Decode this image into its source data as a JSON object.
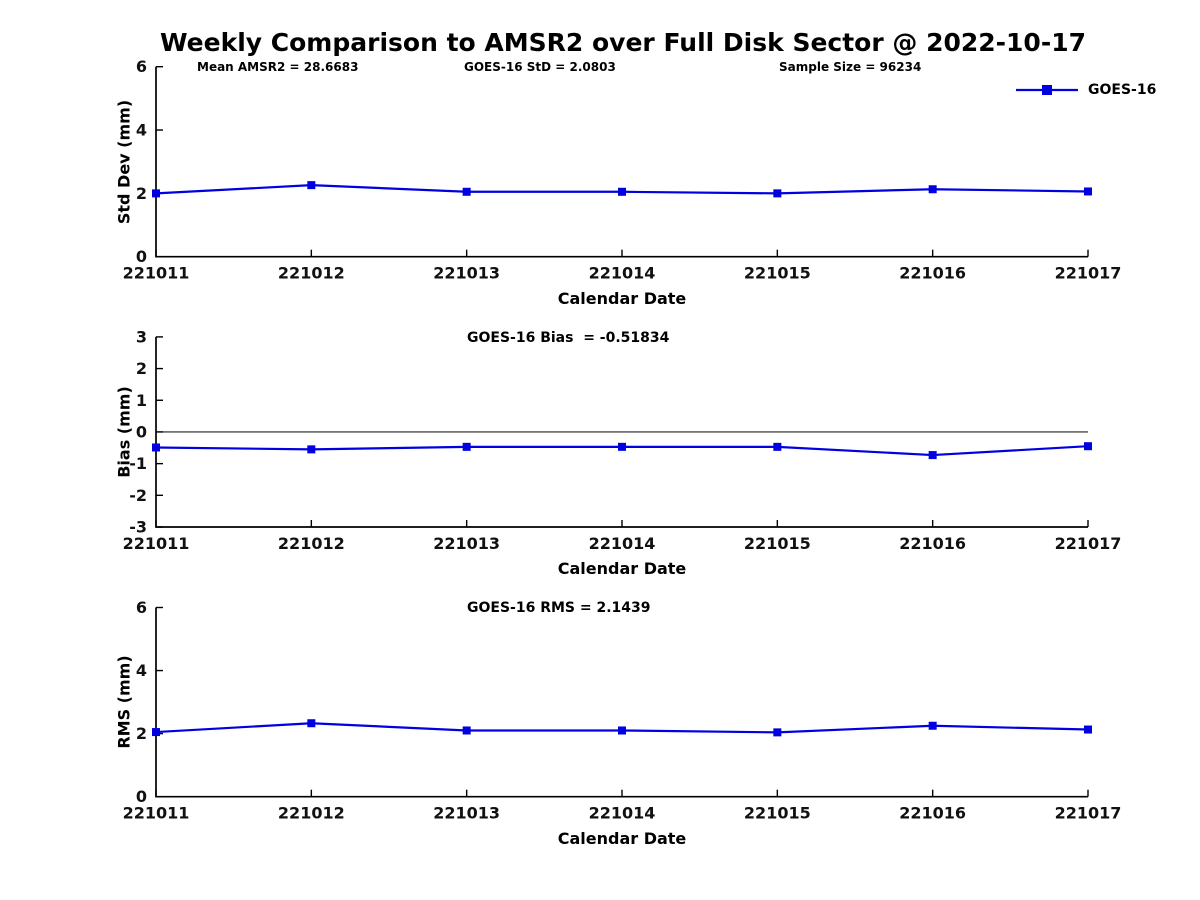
{
  "figure": {
    "title": "Weekly Comparison to AMSR2 over Full Disk Sector @ 2022-10-17",
    "background": "#ffffff"
  },
  "header_stats": {
    "mean_amsr2": "Mean AMSR2 = 28.6683",
    "goes16_std": "GOES-16 StD = 2.0803",
    "sample_size": "Sample Size = 96234"
  },
  "legend": {
    "label": "GOES-16",
    "position": "top-right",
    "marker": "square"
  },
  "colors": {
    "series": "#0000e0",
    "axis": "#000000",
    "text": "#000000",
    "zero_line": "#222222"
  },
  "chart_data": [
    {
      "type": "line",
      "title": "",
      "xlabel": "Calendar Date",
      "ylabel": "Std Dev (mm)",
      "categories": [
        "221011",
        "221012",
        "221013",
        "221014",
        "221015",
        "221016",
        "221017"
      ],
      "series": [
        {
          "name": "GOES-16",
          "values": [
            2.0,
            2.26,
            2.05,
            2.05,
            2.0,
            2.13,
            2.06
          ]
        }
      ],
      "ylim": [
        0,
        6
      ],
      "yticks": [
        0,
        2,
        4,
        6
      ],
      "marker": "square",
      "grid": false,
      "zero_line": false
    },
    {
      "type": "line",
      "title": "GOES-16 Bias  = -0.51834",
      "xlabel": "Calendar Date",
      "ylabel": "Bias (mm)",
      "categories": [
        "221011",
        "221012",
        "221013",
        "221014",
        "221015",
        "221016",
        "221017"
      ],
      "series": [
        {
          "name": "GOES-16",
          "values": [
            -0.49,
            -0.55,
            -0.47,
            -0.47,
            -0.47,
            -0.73,
            -0.45
          ]
        }
      ],
      "ylim": [
        -3,
        3
      ],
      "yticks": [
        -3,
        -2,
        -1,
        0,
        1,
        2,
        3
      ],
      "marker": "square",
      "grid": false,
      "zero_line": true
    },
    {
      "type": "line",
      "title": "GOES-16 RMS = 2.1439",
      "xlabel": "Calendar Date",
      "ylabel": "RMS (mm)",
      "categories": [
        "221011",
        "221012",
        "221013",
        "221014",
        "221015",
        "221016",
        "221017"
      ],
      "series": [
        {
          "name": "GOES-16",
          "values": [
            2.05,
            2.33,
            2.1,
            2.1,
            2.04,
            2.25,
            2.13
          ]
        }
      ],
      "ylim": [
        0,
        6
      ],
      "yticks": [
        0,
        2,
        4,
        6
      ],
      "marker": "square",
      "grid": false,
      "zero_line": false
    }
  ]
}
